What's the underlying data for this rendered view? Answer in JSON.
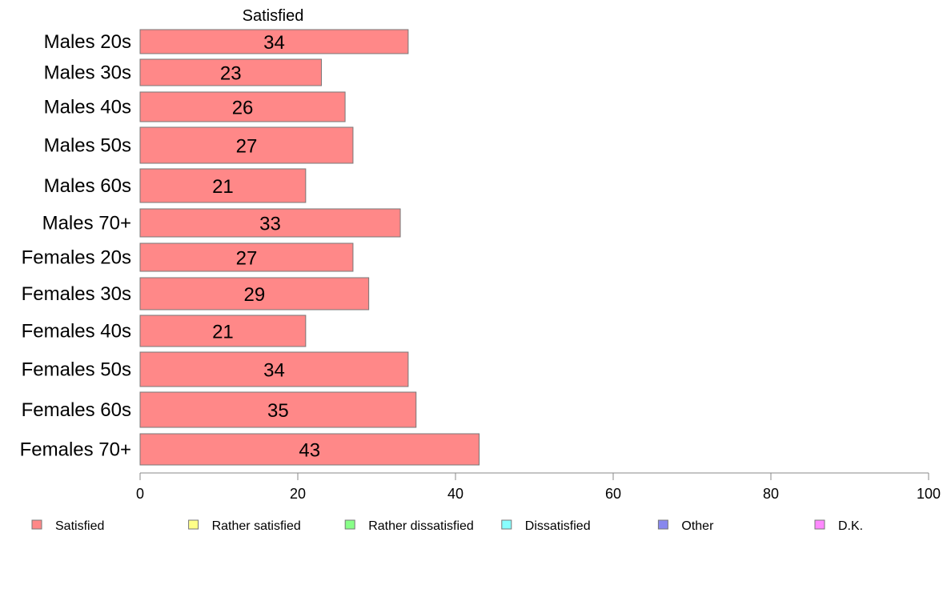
{
  "chart_data": {
    "type": "bar",
    "orientation": "horizontal",
    "categories": [
      "Males 20s",
      "Males 30s",
      "Males 40s",
      "Males 50s",
      "Males 60s",
      "Males 70+",
      "Females 20s",
      "Females 30s",
      "Females 40s",
      "Females 50s",
      "Females 60s",
      "Females 70+"
    ],
    "series": [
      {
        "name": "Satisfied",
        "color": "#ff8888",
        "values": [
          34,
          23,
          26,
          27,
          21,
          33,
          27,
          29,
          21,
          34,
          35,
          43
        ]
      }
    ],
    "column_header": "Satisfied",
    "xlim": [
      0,
      100
    ],
    "xticks": [
      0,
      20,
      40,
      60,
      80,
      100
    ],
    "grid": false,
    "legend_position": "bottom",
    "legend": [
      {
        "label": "Satisfied",
        "color": "#ff8888"
      },
      {
        "label": "Rather satisfied",
        "color": "#ffff88"
      },
      {
        "label": "Rather dissatisfied",
        "color": "#88ff88"
      },
      {
        "label": "Dissatisfied",
        "color": "#88ffff"
      },
      {
        "label": "Other",
        "color": "#8888ee"
      },
      {
        "label": "D.K.",
        "color": "#ff88ff"
      }
    ]
  }
}
